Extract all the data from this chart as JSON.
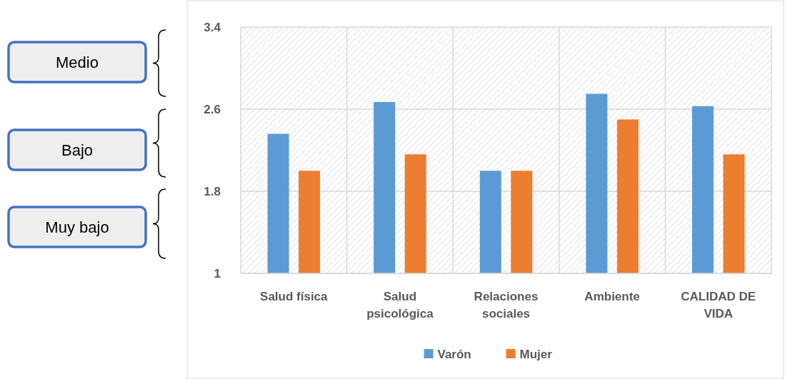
{
  "chart_data": {
    "type": "bar",
    "categories": [
      "Salud física",
      "Salud psicológica",
      "Relaciones sociales",
      "Ambiente",
      "CALIDAD DE VIDA"
    ],
    "series": [
      {
        "name": "Varón",
        "color": "#5b9bd5",
        "values": [
          2.36,
          2.67,
          2.0,
          2.75,
          2.63
        ]
      },
      {
        "name": "Mujer",
        "color": "#ed7d31",
        "values": [
          2.0,
          2.16,
          2.0,
          2.5,
          2.16
        ]
      }
    ],
    "ylim": [
      1,
      3.4
    ],
    "yticks": [
      1,
      1.8,
      2.6,
      3.4
    ],
    "grid": true,
    "legend": "bottom",
    "annotations": [
      "Medio",
      "Bajo",
      "Muy bajo"
    ]
  }
}
